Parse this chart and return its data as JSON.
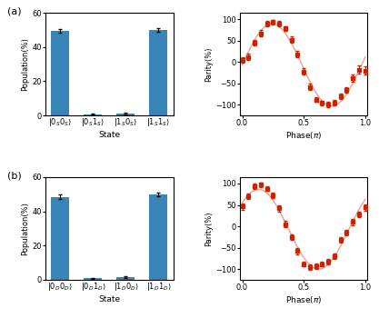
{
  "bar_color": "#3a85b8",
  "line_color": "#f0a090",
  "marker_color": "#cc2200",
  "marker_style": "s",
  "panel_a": {
    "bar_labels": [
      "|0$_S$0$_S$⟩",
      "|0$_S$1$_S$⟩",
      "|1$_S$0$_S$⟩",
      "|1$_S$1$_S$⟩"
    ],
    "bar_values": [
      49.5,
      0.8,
      1.2,
      50.0
    ],
    "bar_errors": [
      1.2,
      0.3,
      0.4,
      1.0
    ],
    "parity_x": [
      0.0,
      0.05,
      0.1,
      0.15,
      0.2,
      0.25,
      0.3,
      0.35,
      0.4,
      0.45,
      0.5,
      0.55,
      0.6,
      0.65,
      0.7,
      0.75,
      0.8,
      0.85,
      0.9,
      0.95,
      1.0
    ],
    "parity_y": [
      5,
      12,
      45,
      67,
      90,
      93,
      90,
      78,
      52,
      18,
      -22,
      -58,
      -88,
      -96,
      -100,
      -95,
      -80,
      -65,
      -38,
      -18,
      -20
    ],
    "parity_errors": [
      7,
      7,
      7,
      7,
      6,
      6,
      6,
      6,
      7,
      7,
      7,
      7,
      6,
      6,
      6,
      6,
      7,
      7,
      8,
      9,
      9
    ]
  },
  "panel_b": {
    "bar_labels": [
      "|0$_D$0$_D$⟩",
      "|0$_D$1$_D$⟩",
      "|1$_D$0$_D$⟩",
      "|1$_D$1$_D$⟩"
    ],
    "bar_values": [
      48.5,
      0.9,
      1.5,
      50.0
    ],
    "bar_errors": [
      1.5,
      0.35,
      0.5,
      1.2
    ],
    "parity_x": [
      0.0,
      0.05,
      0.1,
      0.15,
      0.2,
      0.25,
      0.3,
      0.35,
      0.4,
      0.45,
      0.5,
      0.55,
      0.6,
      0.65,
      0.7,
      0.75,
      0.8,
      0.85,
      0.9,
      0.95,
      1.0
    ],
    "parity_y": [
      46,
      70,
      93,
      97,
      88,
      72,
      42,
      5,
      -25,
      -58,
      -88,
      -95,
      -93,
      -88,
      -82,
      -70,
      -32,
      -15,
      10,
      28,
      44
    ],
    "parity_errors": [
      7,
      7,
      6,
      6,
      6,
      7,
      7,
      7,
      7,
      7,
      6,
      6,
      6,
      6,
      6,
      7,
      7,
      7,
      7,
      7,
      7
    ]
  },
  "ylabel_bar": "Population(%)",
  "xlabel_bar": "State",
  "ylabel_parity": "Parity(%)",
  "xlabel_parity": "Phase($\\pi$)",
  "ylim_bar": [
    0,
    60
  ],
  "ylim_parity": [
    -125,
    115
  ],
  "yticks_parity": [
    -100,
    -50,
    0,
    50,
    100
  ],
  "xlim_parity": [
    -0.02,
    1.02
  ],
  "xticks_parity": [
    0.0,
    0.5,
    1.0
  ],
  "label_a": "(a)",
  "label_b": "(b)"
}
